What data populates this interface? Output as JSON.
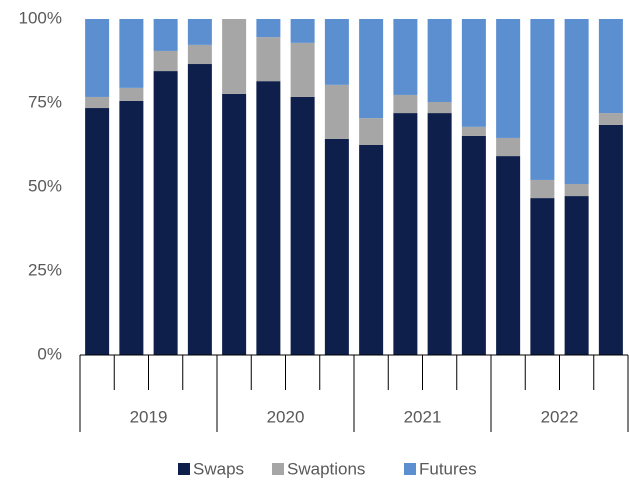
{
  "chart_data": {
    "type": "stacked_bar",
    "categories": [
      null,
      null,
      null,
      null,
      null,
      null,
      null,
      null,
      null,
      null,
      null,
      null,
      null,
      null,
      null,
      null
    ],
    "category_groups": [
      "2019",
      "2020",
      "2021",
      "2022"
    ],
    "series": [
      {
        "name": "Swaps",
        "color": "#0d1f4a",
        "values": [
          73.5,
          75.6,
          84.5,
          86.6,
          77.7,
          81.5,
          76.8,
          64.3,
          62.5,
          72,
          72,
          65.2,
          59.2,
          46.7,
          47.3,
          68.5
        ]
      },
      {
        "name": "Swaptions",
        "color": "#a6a6a6",
        "values": [
          3.3,
          3.9,
          6,
          5.7,
          22.3,
          13.1,
          16.1,
          16.1,
          8,
          5.4,
          3.3,
          2.7,
          5.4,
          5.4,
          3.6,
          3.5
        ]
      },
      {
        "name": "Futures",
        "color": "#5b8fd0",
        "values": [
          23.2,
          20.5,
          9.5,
          7.7,
          0,
          5.4,
          7.1,
          19.6,
          29.5,
          22.6,
          24.7,
          32.1,
          35.4,
          47.9,
          49.1,
          28
        ]
      }
    ],
    "ylim": [
      0,
      100
    ],
    "yticks": [
      {
        "value": 0,
        "label": "0%"
      },
      {
        "value": 25,
        "label": "25%"
      },
      {
        "value": 50,
        "label": "50%"
      },
      {
        "value": 75,
        "label": "75%"
      },
      {
        "value": 100,
        "label": "100%"
      }
    ],
    "legend": "bottom"
  }
}
